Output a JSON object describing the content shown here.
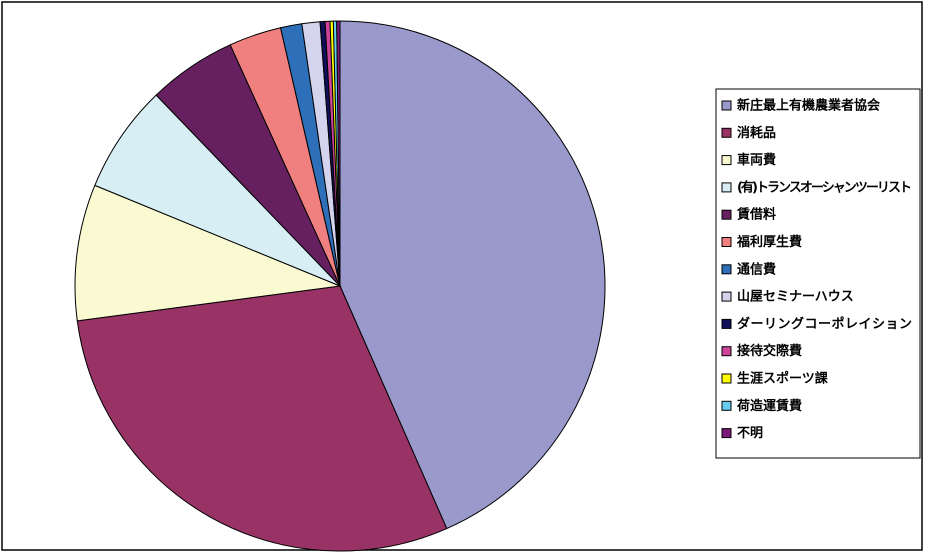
{
  "chart_data": {
    "type": "pie",
    "categories": [
      "新庄最上有機農業者協会",
      "消耗品",
      "車両費",
      "(有)トランスオーシャンツーリスト",
      "賃借料",
      "福利厚生費",
      "通信費",
      "山屋セミナーハウス",
      "ダーリングコーポレイション",
      "接待交際費",
      "生涯スポーツ課",
      "荷造運賃費",
      "不明"
    ],
    "values": [
      43.4,
      29.5,
      8.3,
      6.6,
      5.4,
      3.2,
      1.3,
      1.1,
      0.3,
      0.3,
      0.2,
      0.2,
      0.2
    ],
    "colors": [
      "#9999cc",
      "#993366",
      "#fafad2",
      "#d6eef4",
      "#662060",
      "#f08080",
      "#2e6fba",
      "#d4d4ee",
      "#10105a",
      "#cc4499",
      "#ffff00",
      "#66ccee",
      "#7a1a78"
    ],
    "legend": "right"
  }
}
